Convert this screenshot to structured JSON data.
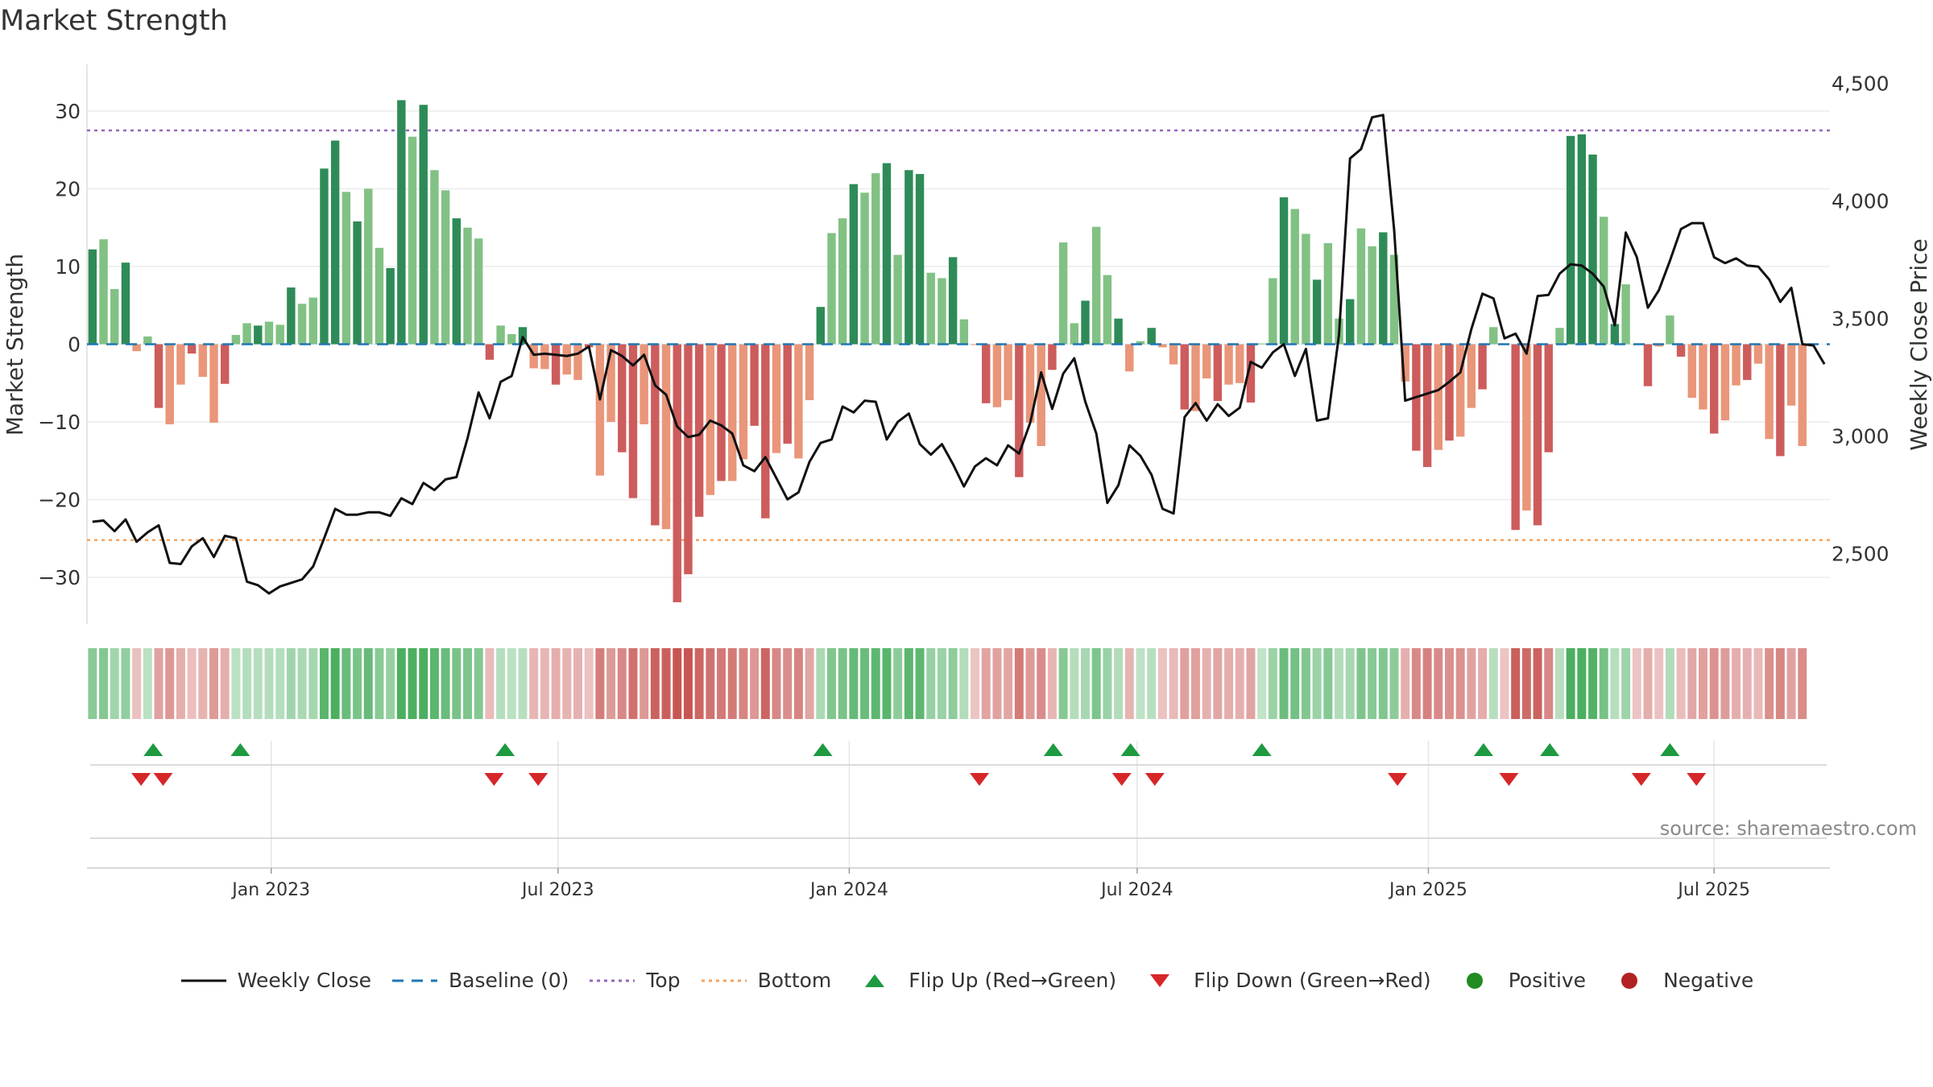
{
  "title": "Market Strength",
  "source": "source: sharemaestro.com",
  "colors": {
    "pos_dark": "#2e8b57",
    "pos_light": "#82c184",
    "neg_dark": "#cd5c5c",
    "neg_light": "#e9967a",
    "line": "#111111",
    "baseline": "#1f77b4",
    "top": "#9467bd",
    "bottom": "#f4a460",
    "flip_up": "#1e9a40",
    "flip_down": "#d62728",
    "positive": "#228b22",
    "negative": "#b22222"
  },
  "legend": [
    {
      "key": "weekly_close",
      "label": "Weekly Close",
      "icon": "line-solid-icon"
    },
    {
      "key": "baseline",
      "label": "Baseline (0)",
      "icon": "line-dashed-icon"
    },
    {
      "key": "top",
      "label": "Top",
      "icon": "line-dotted-icon"
    },
    {
      "key": "bottom",
      "label": "Bottom",
      "icon": "line-dotted-icon"
    },
    {
      "key": "flip_up",
      "label": "Flip Up (Red→Green)",
      "icon": "triangle-up-icon"
    },
    {
      "key": "flip_down",
      "label": "Flip Down (Green→Red)",
      "icon": "triangle-down-icon"
    },
    {
      "key": "positive",
      "label": "Positive",
      "icon": "circle-icon"
    },
    {
      "key": "negative",
      "label": "Negative",
      "icon": "circle-icon"
    }
  ],
  "chart_data": {
    "type": "bar",
    "title": "Market Strength",
    "ylabel": "Market Strength",
    "y2label": "Weekly Close Price",
    "ylim": [
      -36,
      36
    ],
    "y2lim": [
      2200,
      4580
    ],
    "yticks": [
      30,
      20,
      10,
      0,
      -10,
      -20,
      -30
    ],
    "yticklabels": [
      "30",
      "20",
      "10",
      "0",
      "−10",
      "−20",
      "−30"
    ],
    "y2ticks": [
      4500,
      4000,
      3500,
      3000,
      2500
    ],
    "y2ticklabels": [
      "4,500",
      "4,000",
      "3,500",
      "3,000",
      "2,500"
    ],
    "top_level": 27.5,
    "bottom_level": -25.2,
    "baseline": 0,
    "xticks": [
      {
        "label": "Jan 2023",
        "week": 16.2
      },
      {
        "label": "Jul 2023",
        "week": 42.2
      },
      {
        "label": "Jan 2024",
        "week": 68.6
      },
      {
        "label": "Jul 2024",
        "week": 94.7
      },
      {
        "label": "Jan 2025",
        "week": 121.1
      },
      {
        "label": "Jul 2025",
        "week": 147.0
      }
    ],
    "weeks": 158,
    "strength": [
      12.2,
      13.5,
      7.1,
      10.5,
      -0.9,
      1.0,
      -8.2,
      -10.3,
      -5.2,
      -1.2,
      -4.2,
      -10.1,
      -5.1,
      1.2,
      2.7,
      2.4,
      2.9,
      2.5,
      7.3,
      5.2,
      6.0,
      22.6,
      26.2,
      19.6,
      15.8,
      20.0,
      12.4,
      9.8,
      31.4,
      26.7,
      30.8,
      22.4,
      19.8,
      16.2,
      15.0,
      13.6,
      -2.0,
      2.4,
      1.3,
      2.2,
      -3.1,
      -3.2,
      -5.2,
      -3.9,
      -4.6,
      -0.4,
      -16.9,
      -10.0,
      -13.9,
      -19.8,
      -10.3,
      -23.3,
      -23.8,
      -33.2,
      -29.6,
      -22.2,
      -19.4,
      -17.6,
      -17.6,
      -14.8,
      -10.5,
      -22.4,
      -14.0,
      -12.8,
      -14.7,
      -7.2,
      4.8,
      14.3,
      16.2,
      20.6,
      19.5,
      22.0,
      23.3,
      11.5,
      22.4,
      21.9,
      9.2,
      8.5,
      11.2,
      3.2,
      -0.1,
      -7.6,
      -8.1,
      -7.2,
      -17.1,
      -10.1,
      -13.1,
      -3.3,
      13.1,
      2.7,
      5.6,
      15.1,
      8.9,
      3.3,
      -3.5,
      0.4,
      2.1,
      -0.4,
      -2.6,
      -8.4,
      -8.6,
      -4.4,
      -7.3,
      -5.2,
      -5.0,
      -7.5,
      0.1,
      8.5,
      18.9,
      17.4,
      14.2,
      8.3,
      13.0,
      3.3,
      5.8,
      14.9,
      12.6,
      14.4,
      11.5,
      -4.8,
      -13.7,
      -15.8,
      -13.6,
      -12.4,
      -11.9,
      -8.2,
      -5.8,
      2.2,
      -0.1,
      -23.9,
      -21.4,
      -23.3,
      -13.9,
      2.1,
      26.8,
      27.0,
      24.4,
      16.4,
      2.6,
      7.7,
      -0.1,
      -5.4,
      -0.3,
      3.7,
      -1.6,
      -6.9,
      -8.4,
      -11.5,
      -9.8,
      -5.3,
      -4.6,
      -2.5,
      -12.2,
      -14.4,
      -7.9,
      -13.1
    ],
    "weekly_close": [
      2635,
      2640,
      2595,
      2645,
      2550,
      2590,
      2620,
      2460,
      2455,
      2530,
      2565,
      2485,
      2575,
      2565,
      2380,
      2365,
      2330,
      2360,
      2375,
      2390,
      2445,
      2565,
      2690,
      2665,
      2665,
      2675,
      2675,
      2660,
      2735,
      2710,
      2800,
      2770,
      2815,
      2825,
      2990,
      3185,
      3075,
      3230,
      3255,
      3420,
      3345,
      3350,
      3345,
      3340,
      3350,
      3380,
      3155,
      3365,
      3340,
      3300,
      3345,
      3215,
      3175,
      3040,
      2995,
      3005,
      3065,
      3045,
      3010,
      2875,
      2850,
      2910,
      2820,
      2730,
      2760,
      2890,
      2970,
      2985,
      3125,
      3100,
      3150,
      3145,
      2985,
      3060,
      3095,
      2965,
      2920,
      2965,
      2880,
      2785,
      2870,
      2905,
      2875,
      2960,
      2925,
      3055,
      3270,
      3115,
      3265,
      3330,
      3145,
      3010,
      2715,
      2790,
      2960,
      2915,
      2835,
      2690,
      2670,
      3080,
      3140,
      3065,
      3135,
      3085,
      3120,
      3315,
      3290,
      3355,
      3390,
      3255,
      3370,
      3065,
      3075,
      3430,
      4180,
      4220,
      4355,
      4365,
      3875,
      3150,
      3165,
      3180,
      3195,
      3230,
      3270,
      3455,
      3605,
      3585,
      3415,
      3435,
      3350,
      3595,
      3600,
      3690,
      3730,
      3725,
      3690,
      3635,
      3470,
      3865,
      3760,
      3545,
      3620,
      3745,
      3880,
      3905,
      3905,
      3760,
      3735,
      3755,
      3725,
      3720,
      3665,
      3570,
      3630,
      3390,
      3385,
      3305
    ]
  },
  "sectors_strip": {
    "colors": [
      "#8fca94",
      "#9cd1a0",
      "#b4dcb7",
      "#d1e9d3",
      "#ecc9c6",
      "#e8b7b3",
      "#e5abaa",
      "#e1a2a0"
    ]
  },
  "flips": {
    "up_weeks": [
      5.5,
      13.4,
      37.4,
      66.2,
      87.1,
      94.1,
      106.0,
      126.1,
      132.1,
      143.0
    ],
    "down_weeks": [
      4.4,
      6.4,
      36.4,
      40.4,
      80.4,
      93.3,
      96.3,
      118.3,
      128.4,
      140.4,
      145.4
    ]
  }
}
